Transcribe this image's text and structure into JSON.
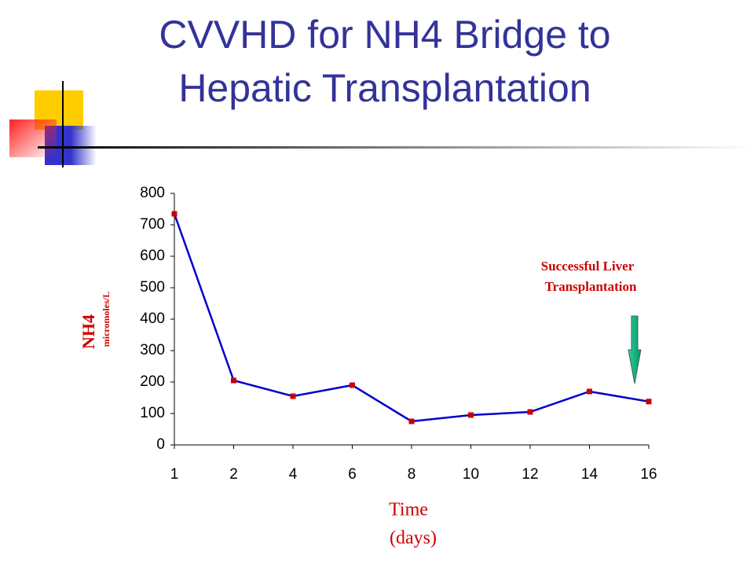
{
  "chart_data": {
    "type": "line",
    "title": "CVVHD for NH4 Bridge to Hepatic Transplantation",
    "y_label": "NH4",
    "y_unit": "micromoles/L",
    "x_label": [
      "Time",
      "(days)"
    ],
    "annotation": [
      "Successful Liver",
      "Transplantation"
    ],
    "categories": [
      "1",
      "2",
      "4",
      "6",
      "8",
      "10",
      "12",
      "14",
      "16"
    ],
    "values": [
      735,
      205,
      155,
      190,
      75,
      95,
      105,
      170,
      138
    ],
    "color": "#0000cc",
    "marker_color": "#cc0000",
    "ylim": [
      0,
      800
    ],
    "yticks": [
      0,
      100,
      200,
      300,
      400,
      500,
      600,
      700,
      800
    ]
  }
}
